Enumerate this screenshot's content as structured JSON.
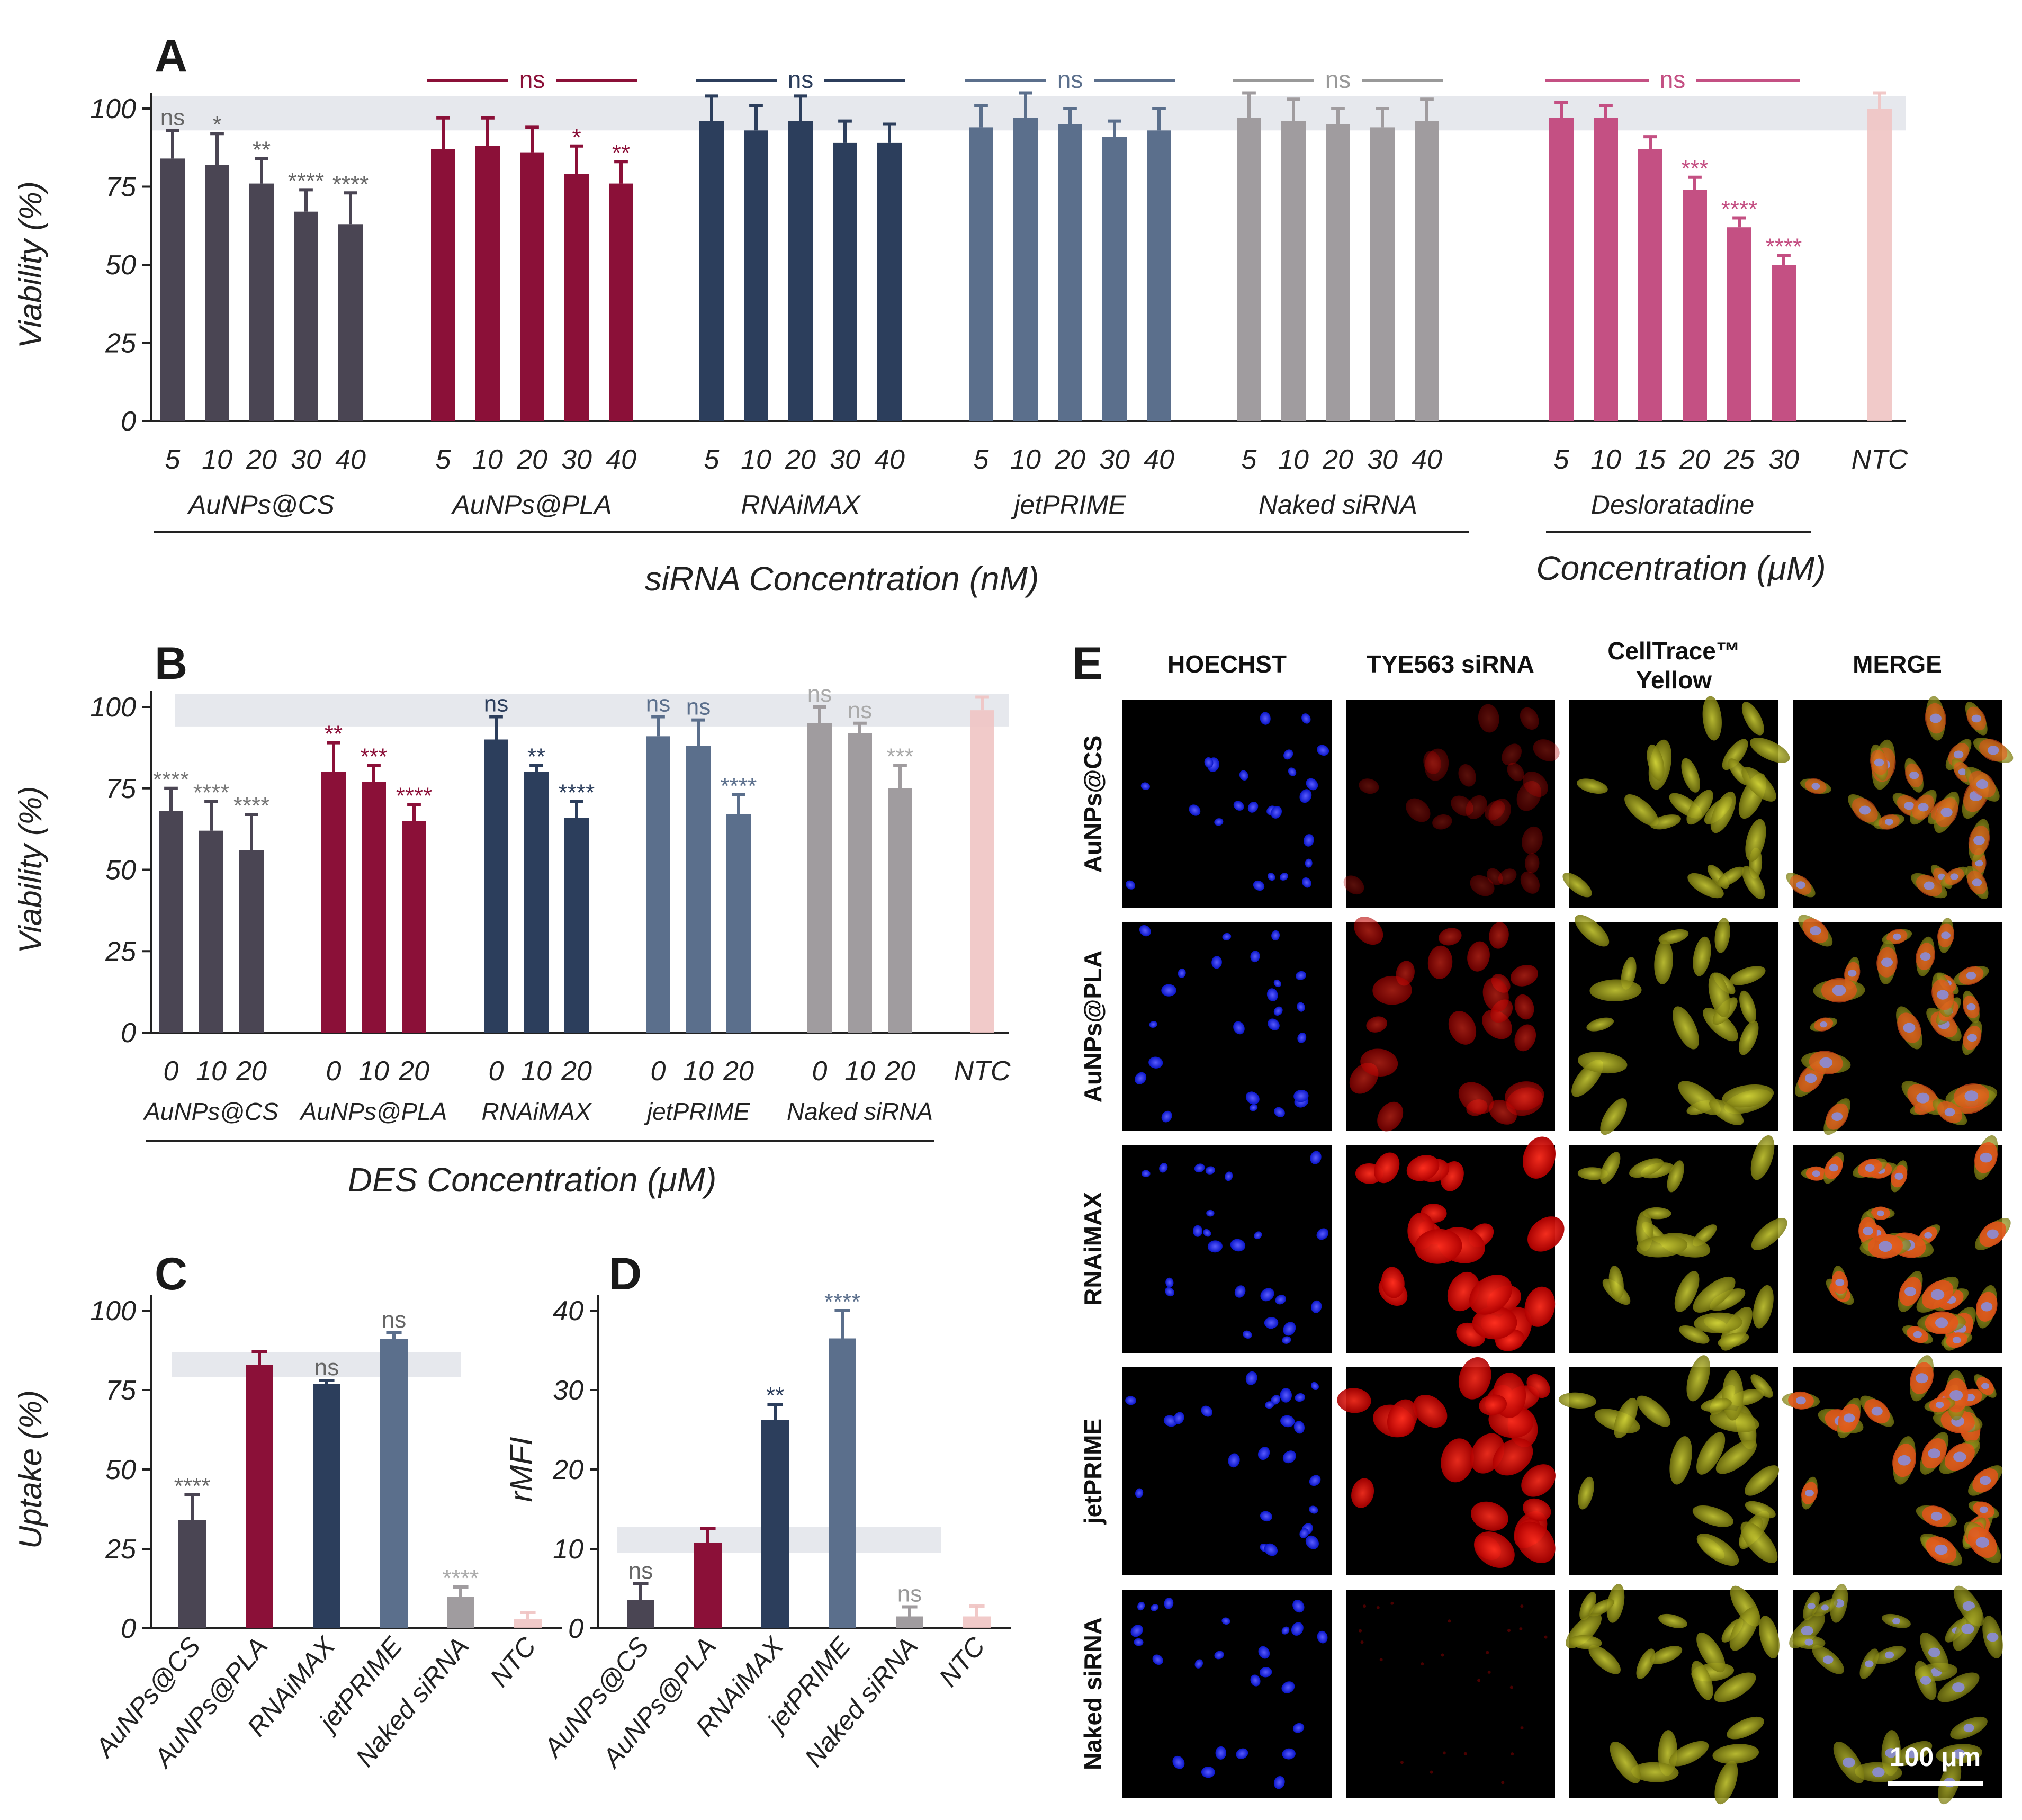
{
  "colors": {
    "AuNPs@CS": "#4a4553",
    "AuNPs@PLA": "#8b1038",
    "RNAiMAX": "#2c3e5c",
    "jetPRIME": "#5b6f8c",
    "Naked siRNA": "#a09c9f",
    "Desloratadine": "#c45083",
    "NTC": "#f0c4c3",
    "band": "#e6e8ed"
  },
  "chart_data": [
    {
      "panel": "A",
      "type": "bar",
      "ylabel": "Viability (%)",
      "ylim": [
        0,
        100
      ],
      "yticks": [
        0,
        25,
        50,
        75,
        100
      ],
      "reference_band": [
        93,
        104
      ],
      "xlabel_main": "siRNA Concentration (nM)",
      "xlabel_secondary": "Concentration (μM)",
      "groups": [
        {
          "name": "AuNPs@CS",
          "categories": [
            "5",
            "10",
            "20",
            "30",
            "40"
          ],
          "values": [
            84,
            82,
            76,
            67,
            63
          ],
          "errors": [
            9,
            10,
            8,
            7,
            10
          ],
          "annotations": [
            "ns",
            "*",
            "**",
            "****",
            "****"
          ],
          "group_annotation": ""
        },
        {
          "name": "AuNPs@PLA",
          "categories": [
            "5",
            "10",
            "20",
            "30",
            "40"
          ],
          "values": [
            87,
            88,
            86,
            79,
            76
          ],
          "errors": [
            10,
            9,
            8,
            9,
            7
          ],
          "annotations": [
            "",
            "",
            "",
            "*",
            "**"
          ],
          "group_annotation": "ns"
        },
        {
          "name": "RNAiMAX",
          "categories": [
            "5",
            "10",
            "20",
            "30",
            "40"
          ],
          "values": [
            96,
            93,
            96,
            89,
            89
          ],
          "errors": [
            8,
            8,
            8,
            7,
            6
          ],
          "annotations": [
            "",
            "",
            "",
            "",
            ""
          ],
          "group_annotation": "ns"
        },
        {
          "name": "jetPRIME",
          "categories": [
            "5",
            "10",
            "20",
            "30",
            "40"
          ],
          "values": [
            94,
            97,
            95,
            91,
            93
          ],
          "errors": [
            7,
            8,
            5,
            5,
            7
          ],
          "annotations": [
            "",
            "",
            "",
            "",
            ""
          ],
          "group_annotation": "ns"
        },
        {
          "name": "Naked siRNA",
          "categories": [
            "5",
            "10",
            "20",
            "30",
            "40"
          ],
          "values": [
            97,
            96,
            95,
            94,
            96
          ],
          "errors": [
            8,
            7,
            5,
            6,
            7
          ],
          "annotations": [
            "",
            "",
            "",
            "",
            ""
          ],
          "group_annotation": "ns"
        },
        {
          "name": "Desloratadine",
          "categories": [
            "5",
            "10",
            "15",
            "20",
            "25",
            "30"
          ],
          "values": [
            97,
            97,
            87,
            74,
            62,
            50
          ],
          "errors": [
            5,
            4,
            4,
            4,
            3,
            3
          ],
          "annotations": [
            "",
            "",
            "",
            "***",
            "****",
            "****"
          ],
          "group_annotation": "ns"
        },
        {
          "name": "NTC",
          "categories": [
            "NTC"
          ],
          "values": [
            100
          ],
          "errors": [
            5
          ],
          "annotations": [
            ""
          ],
          "group_annotation": ""
        }
      ]
    },
    {
      "panel": "B",
      "type": "bar",
      "ylabel": "Viability (%)",
      "ylim": [
        0,
        100
      ],
      "yticks": [
        0,
        25,
        50,
        75,
        100
      ],
      "reference_band": [
        94,
        104
      ],
      "xlabel_main": "DES Concentration (μM)",
      "groups": [
        {
          "name": "AuNPs@CS",
          "categories": [
            "0",
            "10",
            "20"
          ],
          "values": [
            68,
            62,
            56
          ],
          "errors": [
            7,
            9,
            11
          ],
          "annotations": [
            "****",
            "****",
            "****"
          ]
        },
        {
          "name": "AuNPs@PLA",
          "categories": [
            "0",
            "10",
            "20"
          ],
          "values": [
            80,
            77,
            65
          ],
          "errors": [
            9,
            5,
            5
          ],
          "annotations": [
            "**",
            "***",
            "****"
          ]
        },
        {
          "name": "RNAiMAX",
          "categories": [
            "0",
            "10",
            "20"
          ],
          "values": [
            90,
            80,
            66
          ],
          "errors": [
            7,
            2,
            5
          ],
          "annotations": [
            "ns",
            "**",
            "****"
          ]
        },
        {
          "name": "jetPRIME",
          "categories": [
            "0",
            "10",
            "20"
          ],
          "values": [
            91,
            88,
            67
          ],
          "errors": [
            6,
            8,
            6
          ],
          "annotations": [
            "ns",
            "ns",
            "****"
          ]
        },
        {
          "name": "Naked siRNA",
          "categories": [
            "0",
            "10",
            "20"
          ],
          "values": [
            95,
            92,
            75
          ],
          "errors": [
            5,
            3,
            7
          ],
          "annotations": [
            "ns",
            "ns",
            "***"
          ]
        },
        {
          "name": "NTC",
          "categories": [
            "NTC"
          ],
          "values": [
            99
          ],
          "errors": [
            4
          ],
          "annotations": [
            ""
          ]
        }
      ]
    },
    {
      "panel": "C",
      "type": "bar",
      "ylabel": "Uptake (%)",
      "ylim": [
        0,
        100
      ],
      "yticks": [
        0,
        25,
        50,
        75,
        100
      ],
      "reference_band": [
        79,
        87
      ],
      "categories": [
        "AuNPs@CS",
        "AuNPs@PLA",
        "RNAiMAX",
        "jetPRIME",
        "Naked siRNA",
        "NTC"
      ],
      "values": [
        34,
        83,
        77,
        91,
        10,
        3
      ],
      "errors": [
        8,
        4,
        1,
        2,
        3,
        2
      ],
      "annotations": [
        "****",
        "",
        "ns",
        "ns",
        "****",
        ""
      ]
    },
    {
      "panel": "D",
      "type": "bar",
      "ylabel": "rMFI",
      "ylim": [
        0,
        40
      ],
      "yticks": [
        0,
        10,
        20,
        30,
        40
      ],
      "reference_band": [
        9.5,
        12.8
      ],
      "categories": [
        "AuNPs@CS",
        "AuNPs@PLA",
        "RNAiMAX",
        "jetPRIME",
        "Naked siRNA",
        "NTC"
      ],
      "values": [
        3.6,
        10.8,
        26.2,
        36.5,
        1.5,
        1.5
      ],
      "errors": [
        2,
        1.8,
        2,
        3.5,
        1.2,
        1.3
      ],
      "annotations": [
        "ns",
        "",
        "**",
        "****",
        "ns",
        ""
      ]
    }
  ],
  "labels": {
    "panel_a": "A",
    "panel_b": "B",
    "panel_c": "C",
    "panel_d": "D",
    "panel_e": "E"
  },
  "microscopy": {
    "columns": [
      "HOECHST",
      "TYE563 siRNA",
      "CellTrace™\nYellow",
      "MERGE"
    ],
    "rows": [
      "AuNPs@CS",
      "AuNPs@PLA",
      "RNAiMAX",
      "jetPRIME",
      "Naked siRNA"
    ],
    "scale_bar": "100 μm",
    "red_intensity": [
      0.35,
      0.6,
      0.95,
      0.9,
      0.05
    ]
  }
}
